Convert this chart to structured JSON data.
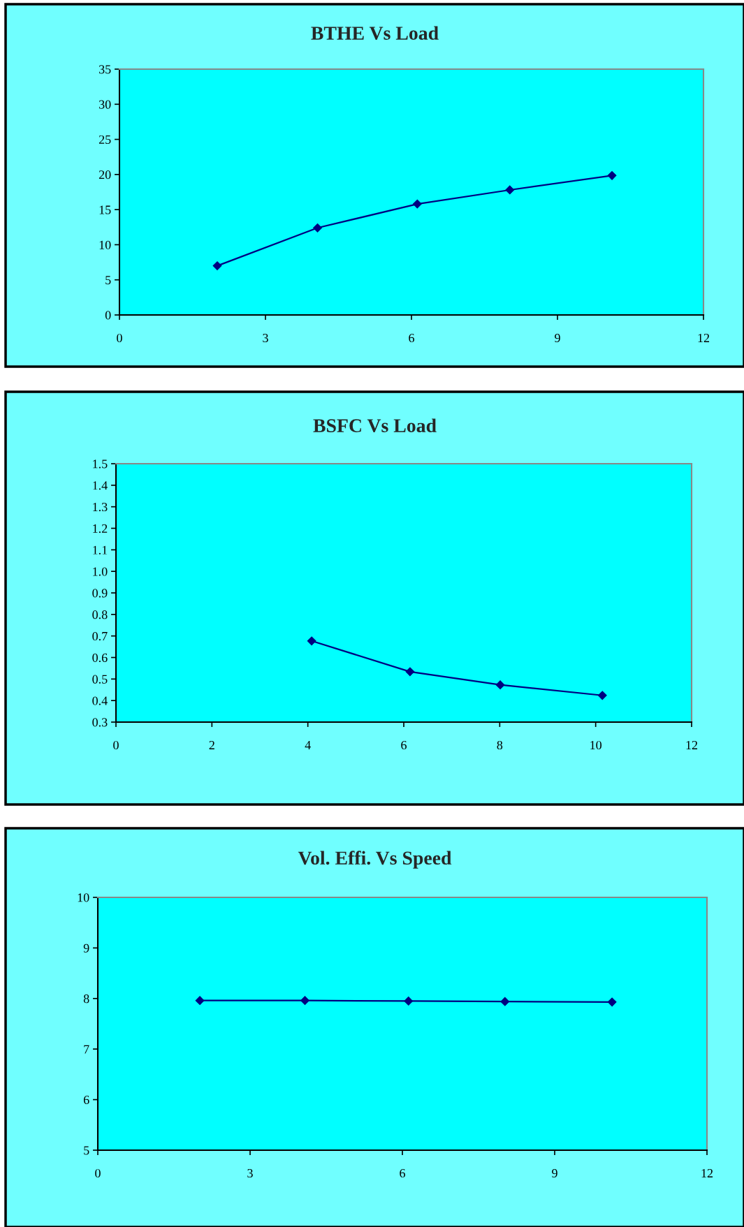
{
  "chart_data": [
    {
      "type": "line",
      "title": "BTHE Vs Load",
      "x": [
        2.01,
        4.07,
        6.12,
        8.02,
        10.12
      ],
      "series": [
        {
          "color": "#000080",
          "values": [
            7.0,
            12.4,
            15.8,
            17.8,
            19.85
          ]
        }
      ],
      "xlim": [
        0,
        12
      ],
      "xticks": [
        0,
        3,
        6,
        9,
        12
      ],
      "ylim": [
        0,
        35
      ],
      "yticks": [
        0,
        5,
        10,
        15,
        20,
        25,
        30,
        35
      ],
      "marker": "diamond",
      "grid": false
    },
    {
      "type": "line",
      "title": "BSFC Vs Load",
      "x": [
        4.08,
        6.13,
        8.01,
        10.14
      ],
      "series": [
        {
          "color": "#000080",
          "values": [
            0.677,
            0.534,
            0.473,
            0.424
          ]
        }
      ],
      "xlim": [
        0,
        12
      ],
      "xticks": [
        0,
        2,
        4,
        6,
        8,
        10,
        12
      ],
      "ylim": [
        0.3,
        1.5
      ],
      "yticks": [
        0.3,
        0.4,
        0.5,
        0.6,
        0.7,
        0.8,
        0.9,
        {
          "value": 1.0,
          "label": "1.0"
        },
        1.1,
        1.2,
        1.3,
        1.4,
        1.5
      ],
      "marker": "diamond",
      "grid": false
    },
    {
      "type": "line",
      "title": "Vol. Effi. Vs Speed",
      "x": [
        2.01,
        4.08,
        6.12,
        8.02,
        10.13
      ],
      "series": [
        {
          "color": "#000080",
          "values": [
            7.96,
            7.96,
            7.95,
            7.94,
            7.93
          ]
        }
      ],
      "xlim": [
        0,
        12
      ],
      "xticks": [
        0,
        3,
        6,
        9,
        12
      ],
      "ylim": [
        5,
        10
      ],
      "yticks": [
        5,
        6,
        7,
        8,
        9,
        10
      ],
      "marker": "diamond",
      "grid": false
    }
  ]
}
